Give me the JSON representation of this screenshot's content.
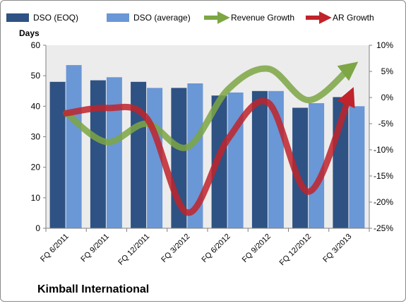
{
  "chart_data": {
    "type": "bar",
    "title": "Kimball International",
    "y_left_label": "Days",
    "y_left_range": [
      0,
      60
    ],
    "y_left_ticks": [
      "0",
      "10",
      "20",
      "30",
      "40",
      "50",
      "60"
    ],
    "y_right_range": [
      -25,
      10
    ],
    "y_right_ticks": [
      "-25%",
      "-20%",
      "-15%",
      "-10%",
      "-5%",
      "0%",
      "5%",
      "10%"
    ],
    "categories": [
      "FQ 6/2011",
      "FQ 9/2011",
      "FQ 12/2011",
      "FQ 3/2012",
      "FQ 6/2012",
      "FQ 9/2012",
      "FQ 12/2012",
      "FQ 3/2013"
    ],
    "series": [
      {
        "name": "DSO (EOQ)",
        "type": "bar",
        "axis": "left",
        "color": "#2e5283",
        "values": [
          48,
          48.5,
          48,
          46,
          43.5,
          45,
          39.5,
          43
        ]
      },
      {
        "name": "DSO (average)",
        "type": "bar",
        "axis": "left",
        "color": "#6a97d6",
        "values": [
          53.5,
          49.5,
          46,
          47.5,
          44.5,
          45,
          41,
          40
        ]
      },
      {
        "name": "Revenue Growth",
        "type": "line",
        "axis": "right",
        "unit": "%",
        "color": "#7da644",
        "values": [
          -3,
          -8.5,
          -5,
          -9.5,
          1.5,
          5.5,
          -0.5,
          5.5
        ]
      },
      {
        "name": "AR Growth",
        "type": "line",
        "axis": "right",
        "unit": "%",
        "color": "#c0232b",
        "values": [
          -3,
          -2,
          -4,
          -22,
          -8,
          -1,
          -18,
          0
        ]
      }
    ],
    "legend_position": "top",
    "grid": false,
    "plot_background": "#ececec"
  }
}
